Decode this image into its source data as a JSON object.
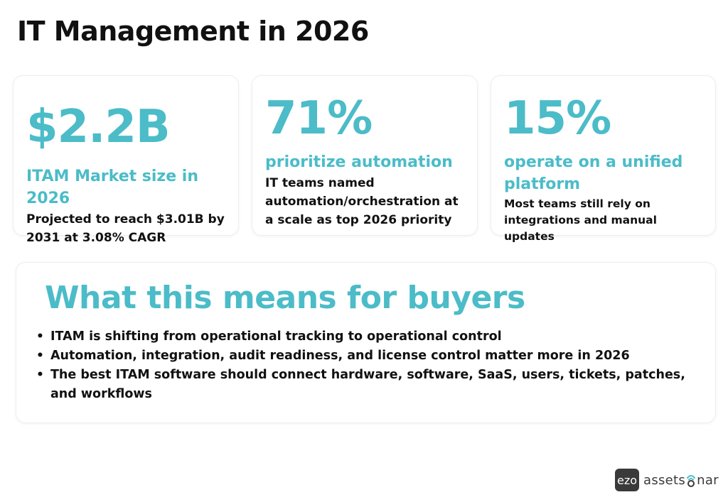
{
  "page": {
    "title": "IT Management in 2026"
  },
  "stats": [
    {
      "value": "$2.2B",
      "label": "ITAM Market size in 2026",
      "description": "Projected to reach $3.01B by 2031 at 3.08% CAGR"
    },
    {
      "value": "71%",
      "label": "prioritize automation",
      "description": "IT teams named automation/orchestration at a scale as top 2026 priority"
    },
    {
      "value": "15%",
      "label": "operate on a unified platform",
      "description": "Most teams still rely on integrations and manual updates"
    }
  ],
  "buyers": {
    "heading": "What this means for buyers",
    "bullet": "•",
    "points": [
      "ITAM is shifting from operational tracking to operational control",
      "Automation, integration, audit readiness, and license control matter more in 2026",
      "The best ITAM software should connect hardware, software, SaaS, users, tickets, patches, and workflows"
    ]
  },
  "brand": {
    "badge": "ezo",
    "word_start": "assets",
    "word_end": "nar",
    "icon": "sonar-icon"
  },
  "colors": {
    "accent": "#4bbcc8",
    "text": "#111111",
    "brand_dark": "#3a3a3a"
  }
}
